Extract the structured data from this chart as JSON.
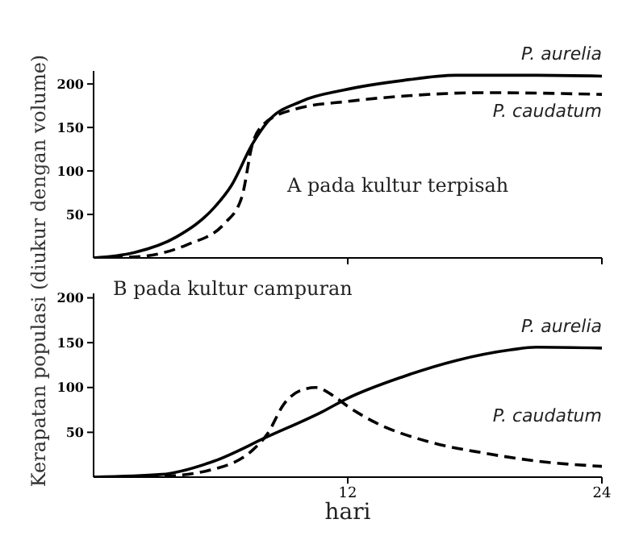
{
  "chart_data": [
    {
      "type": "line",
      "annotations": [
        "A pada kultur terpisah"
      ],
      "ylabel": "Kerapatan populasi (diukur dengan volume)",
      "xlim": [
        0,
        24
      ],
      "xticks": [
        {
          "value": 12,
          "label": null
        },
        {
          "value": 24,
          "label": null
        }
      ],
      "ylim": [
        0,
        215
      ],
      "yticks": [
        50,
        100,
        150,
        200
      ],
      "tick_labels": "y",
      "marker": "none",
      "x": [
        0,
        1.9,
        3.9,
        5.7,
        6.5,
        7.5,
        8.2,
        9.8,
        11.8,
        14.6,
        17.1,
        20.9,
        24
      ],
      "series": [
        {
          "name": "P. aurelia",
          "color": "#000000",
          "line_style": "solid",
          "values": [
            0,
            6,
            24,
            58,
            83,
            131,
            156,
            180,
            193,
            204,
            210,
            210,
            209
          ]
        },
        {
          "name": "P. caudatum",
          "color": "#000000",
          "line_style": "dashed",
          "x": [
            0,
            1.9,
            4.4,
            6.2,
            7,
            7.5,
            8,
            9.5,
            12,
            14.6,
            18.4,
            24
          ],
          "values": [
            0,
            1,
            15,
            40,
            70,
            131,
            153,
            171,
            180,
            186,
            190,
            188
          ]
        }
      ]
    },
    {
      "type": "line",
      "annotations": [
        "B pada kultur campuran"
      ],
      "xlabel": "hari",
      "xlim": [
        0,
        24
      ],
      "xticks": [
        12,
        24
      ],
      "ylim": [
        0,
        205
      ],
      "yticks": [
        50,
        100,
        150,
        200
      ],
      "marker": "none",
      "x": [
        0,
        3.2,
        5.7,
        8.2,
        10.8,
        12,
        14.6,
        17.1,
        19.7,
        20.9,
        24
      ],
      "series": [
        {
          "name": "P. aurelia",
          "color": "#000000",
          "line_style": "solid",
          "values": [
            0,
            3,
            18,
            45,
            73,
            88,
            112,
            130,
            142,
            145,
            144
          ]
        },
        {
          "name": "P. caudatum",
          "color": "#000000",
          "line_style": "dashed",
          "x": [
            0,
            3.2,
            5.7,
            7.5,
            8.2,
            9,
            9.8,
            10.5,
            11.3,
            12,
            13.3,
            15.9,
            18.4,
            20.9,
            24
          ],
          "values": [
            0,
            1,
            9,
            30,
            48,
            82,
            97,
            100,
            91,
            79,
            61,
            39,
            27,
            18,
            12
          ]
        }
      ]
    }
  ]
}
